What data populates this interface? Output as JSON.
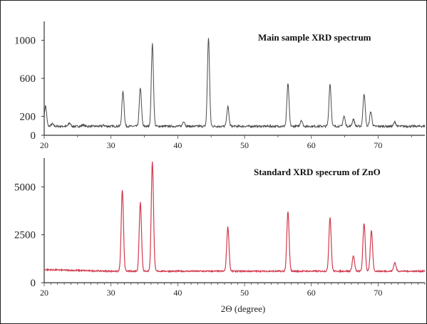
{
  "chart_data": [
    {
      "type": "line",
      "title": "Main sample XRD spectrum",
      "xlabel": "",
      "ylabel": "",
      "xlim": [
        20,
        77
      ],
      "ylim": [
        0,
        1200
      ],
      "x_ticks": [
        20,
        30,
        40,
        50,
        60,
        70
      ],
      "y_ticks": [
        0,
        200,
        600,
        1000
      ],
      "color": "#4a4a4a",
      "baseline": 95,
      "peaks": [
        {
          "x": 20.2,
          "y": 310
        },
        {
          "x": 21.2,
          "y": 120
        },
        {
          "x": 23.8,
          "y": 130
        },
        {
          "x": 25.8,
          "y": 110
        },
        {
          "x": 28.9,
          "y": 105
        },
        {
          "x": 31.8,
          "y": 460
        },
        {
          "x": 34.4,
          "y": 500
        },
        {
          "x": 36.2,
          "y": 960
        },
        {
          "x": 40.9,
          "y": 150
        },
        {
          "x": 44.6,
          "y": 1020
        },
        {
          "x": 47.5,
          "y": 300
        },
        {
          "x": 56.5,
          "y": 540
        },
        {
          "x": 58.5,
          "y": 160
        },
        {
          "x": 62.8,
          "y": 540
        },
        {
          "x": 64.9,
          "y": 200
        },
        {
          "x": 66.3,
          "y": 170
        },
        {
          "x": 67.9,
          "y": 440
        },
        {
          "x": 68.9,
          "y": 250
        },
        {
          "x": 72.5,
          "y": 140
        }
      ]
    },
    {
      "type": "line",
      "title": "Standard XRD specrum of ZnO",
      "xlabel": "2Θ (degree)",
      "ylabel": "",
      "xlim": [
        20,
        77
      ],
      "ylim": [
        0,
        6500
      ],
      "x_ticks": [
        20,
        30,
        40,
        50,
        60,
        70
      ],
      "y_ticks": [
        0,
        2500,
        5000
      ],
      "color": "#d13b4e",
      "baseline": 600,
      "peaks": [
        {
          "x": 31.7,
          "y": 4800
        },
        {
          "x": 34.4,
          "y": 4200
        },
        {
          "x": 36.2,
          "y": 6300
        },
        {
          "x": 47.5,
          "y": 2900
        },
        {
          "x": 56.5,
          "y": 3700
        },
        {
          "x": 62.8,
          "y": 3400
        },
        {
          "x": 66.3,
          "y": 1400
        },
        {
          "x": 67.9,
          "y": 3100
        },
        {
          "x": 69.0,
          "y": 2700
        },
        {
          "x": 72.5,
          "y": 1050
        }
      ]
    }
  ]
}
